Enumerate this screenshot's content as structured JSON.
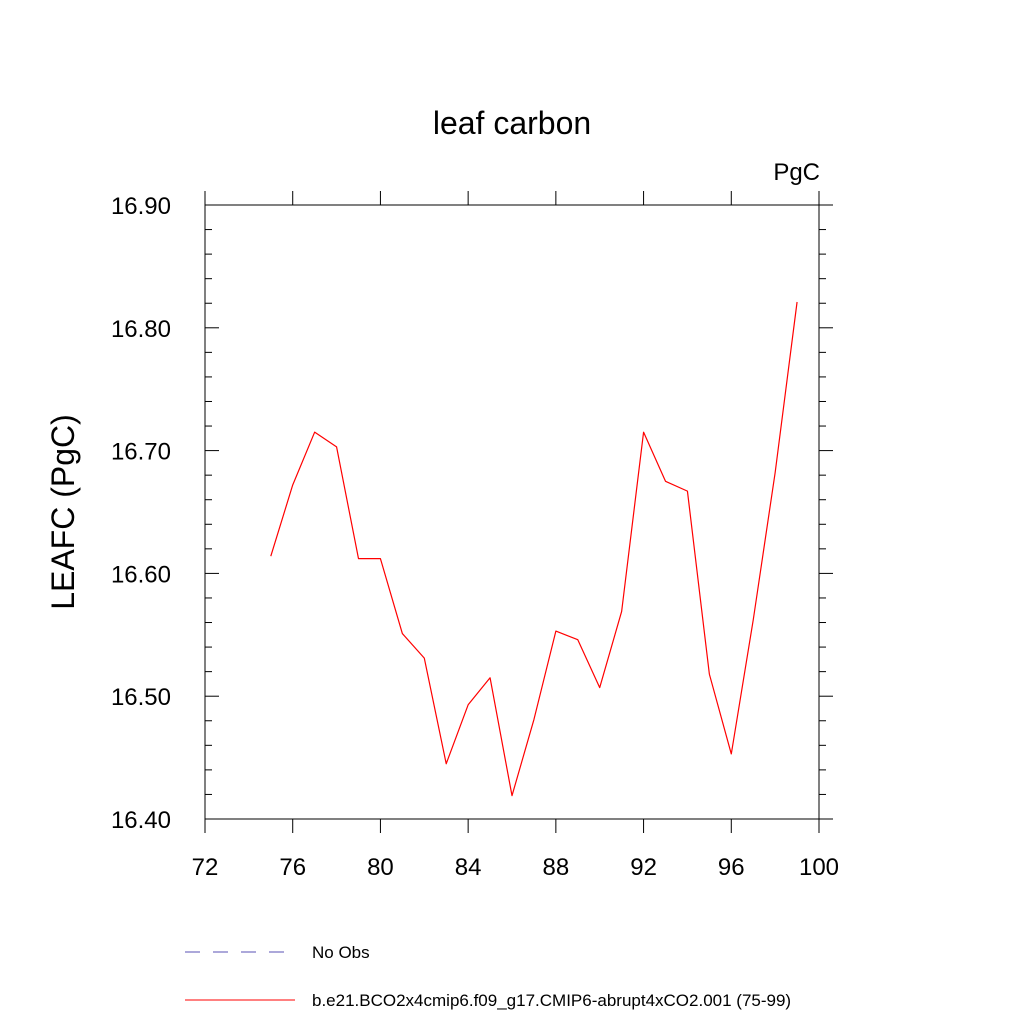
{
  "chart_data": {
    "type": "line",
    "title": "leaf carbon",
    "units": "PgC",
    "ylabel": "LEAFC  (PgC)",
    "xlabel": "",
    "xlim": [
      72,
      100
    ],
    "ylim": [
      16.4,
      16.9
    ],
    "xticks": [
      "72",
      "76",
      "80",
      "84",
      "88",
      "92",
      "96",
      "100"
    ],
    "yticks": [
      "16.40",
      "16.50",
      "16.60",
      "16.70",
      "16.80",
      "16.90"
    ],
    "grid": false,
    "legend_position": "bottom",
    "series": [
      {
        "name": "b.e21.BCO2x4cmip6.f09_g17.CMIP6-abrupt4xCO2.001 (75-99)",
        "color": "#ff0000",
        "style": "solid",
        "x": [
          75,
          76,
          77,
          78,
          79,
          80,
          81,
          82,
          83,
          84,
          85,
          86,
          87,
          88,
          89,
          90,
          91,
          92,
          93,
          94,
          95,
          96,
          97,
          98,
          99
        ],
        "y": [
          16.614,
          16.672,
          16.715,
          16.703,
          16.612,
          16.612,
          16.551,
          16.531,
          16.445,
          16.493,
          16.515,
          16.419,
          16.481,
          16.553,
          16.546,
          16.507,
          16.569,
          16.715,
          16.675,
          16.667,
          16.518,
          16.453,
          16.562,
          16.682,
          16.821
        ]
      }
    ],
    "legend": [
      {
        "label": "No Obs",
        "color": "#5a50b4",
        "style": "dashed"
      },
      {
        "label": "b.e21.BCO2x4cmip6.f09_g17.CMIP6-abrupt4xCO2.001 (75-99)",
        "color": "#ff0000",
        "style": "solid"
      }
    ]
  }
}
